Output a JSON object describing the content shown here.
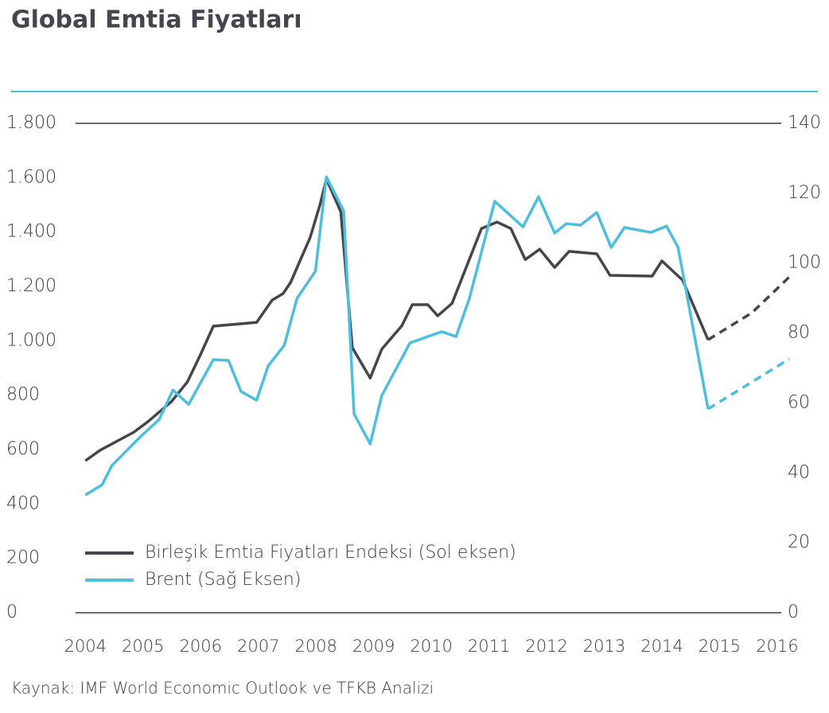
{
  "chart_data": {
    "type": "line",
    "title": "Global Emtia Fiyatları",
    "source": "Kaynak: IMF World Economic Outlook ve TFKB Analizi",
    "xlim": [
      2003.83,
      2016.07
    ],
    "xticks": [
      2004,
      2005,
      2006,
      2007,
      2008,
      2009,
      2010,
      2011,
      2012,
      2013,
      2014,
      2015,
      2016
    ],
    "ylim": [
      0,
      1800
    ],
    "yticks": [
      0,
      200,
      400,
      600,
      800,
      {
        "value": 1000,
        "label": "1.000"
      },
      {
        "value": 1200,
        "label": "1.200"
      },
      {
        "value": 1400,
        "label": "1.400"
      },
      {
        "value": 1600,
        "label": "1.600"
      },
      {
        "value": 1800,
        "label": "1.800"
      }
    ],
    "y2lim": [
      0,
      140
    ],
    "y2ticks": [
      0,
      20,
      40,
      60,
      80,
      100,
      120,
      140
    ],
    "grid": false,
    "legend": "lower left",
    "series": [
      {
        "name": "Birleşik Emtia Fiyatları Endeksi (Sol eksen)",
        "color": "#45454d",
        "dash_from_index": 36,
        "x": [
          2004.0,
          2004.25,
          2004.84,
          2005.08,
          2005.49,
          2005.77,
          2006.0,
          2006.22,
          2006.97,
          2007.24,
          2007.43,
          2007.56,
          2007.9,
          2008.07,
          2008.18,
          2008.43,
          2008.63,
          2008.94,
          2009.14,
          2009.49,
          2009.67,
          2009.94,
          2010.11,
          2010.36,
          2010.87,
          2011.14,
          2011.38,
          2011.63,
          2011.88,
          2012.14,
          2012.39,
          2012.87,
          2013.1,
          2013.83,
          2014.0,
          2014.36,
          2014.8,
          2015.56,
          2016.21
        ],
        "values": [
          559,
          597,
          664,
          702,
          776,
          849,
          951,
          1054,
          1068,
          1150,
          1174,
          1215,
          1381,
          1501,
          1595,
          1475,
          975,
          863,
          969,
          1056,
          1133,
          1133,
          1092,
          1138,
          1413,
          1437,
          1413,
          1299,
          1337,
          1270,
          1329,
          1320,
          1241,
          1238,
          1294,
          1223,
          1004,
          1103,
          1235
        ]
      },
      {
        "name": "Brent (Sağ Eksen)",
        "color": "#4bbfdd",
        "axis": "y2",
        "dash_from_index": 36,
        "x": [
          2004.0,
          2004.29,
          2004.46,
          2004.94,
          2005.28,
          2005.52,
          2005.79,
          2006.22,
          2006.48,
          2006.7,
          2006.97,
          2007.17,
          2007.45,
          2007.67,
          2007.99,
          2008.18,
          2008.48,
          2008.66,
          2008.94,
          2009.14,
          2009.63,
          2010.18,
          2010.43,
          2010.66,
          2011.1,
          2011.59,
          2011.86,
          2012.14,
          2012.34,
          2012.59,
          2012.87,
          2013.12,
          2013.35,
          2013.81,
          2014.08,
          2014.28,
          2014.8,
          2016.21
        ],
        "values": [
          33.7,
          36.6,
          42.1,
          50.1,
          55.3,
          63.7,
          59.6,
          72.4,
          72.2,
          63.3,
          60.8,
          70.6,
          76.5,
          89.9,
          97.7,
          124.7,
          115,
          56.9,
          48.3,
          62.1,
          77.2,
          80.4,
          79,
          89.9,
          117.7,
          110.4,
          119,
          108.6,
          111.3,
          110.9,
          114.5,
          104.5,
          110.2,
          108.8,
          110.6,
          104.5,
          58.3,
          72.6
        ]
      }
    ]
  }
}
